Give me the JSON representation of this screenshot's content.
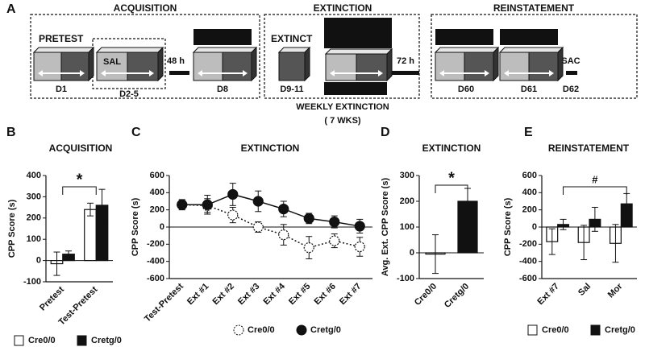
{
  "diagram": {
    "panel": "A",
    "phases": [
      "ACQUISITION",
      "EXTINCTION",
      "REINSTATEMENT"
    ],
    "labels": [
      "PRETEST",
      "SAL",
      "48 h",
      "EXTINCT",
      "72 h",
      "SAC"
    ],
    "days": [
      "D1",
      "D2-5",
      "D8",
      "D9-11",
      "D60",
      "D61",
      "D62"
    ],
    "note": [
      "WEEKLY EXTINCTION",
      "( 7 WKS)"
    ]
  },
  "chart_data": [
    {
      "panel": "B",
      "type": "bar",
      "title": "ACQUISITION",
      "ylabel": "CPP Score (s)",
      "categories": [
        "Pretest",
        "Test-Pretest"
      ],
      "series": [
        {
          "name": "Cre0/0",
          "color": "#ffffff",
          "values": [
            -15,
            240
          ],
          "errors": [
            55,
            30
          ]
        },
        {
          "name": "Cretg/0",
          "color": "#111111",
          "values": [
            30,
            260
          ],
          "errors": [
            15,
            75
          ]
        }
      ],
      "ylim": [
        -100,
        400
      ],
      "yticks": [
        -100,
        0,
        100,
        200,
        300,
        400
      ],
      "annotation": "*",
      "legend": "bottom"
    },
    {
      "panel": "C",
      "type": "line",
      "title": "EXTINCTION",
      "ylabel": "CPP Score (s)",
      "categories": [
        "Test-Pretest",
        "Ext #1",
        "Ext #2",
        "Ext #3",
        "Ext #4",
        "Ext #5",
        "Ext #6",
        "Ext #7"
      ],
      "series": [
        {
          "name": "Cre0/0",
          "color": "#ffffff",
          "linestyle": "dotted",
          "values": [
            260,
            250,
            140,
            0,
            -90,
            -240,
            -160,
            -230
          ],
          "errors": [
            50,
            80,
            90,
            60,
            120,
            130,
            80,
            110
          ]
        },
        {
          "name": "Cretg/0",
          "color": "#111111",
          "linestyle": "solid",
          "values": [
            260,
            260,
            380,
            300,
            210,
            100,
            60,
            10
          ],
          "errors": [
            60,
            110,
            130,
            120,
            90,
            60,
            70,
            80
          ]
        }
      ],
      "ylim": [
        -600,
        600
      ],
      "yticks": [
        -600,
        -400,
        -200,
        0,
        200,
        400,
        600
      ],
      "legend": "bottom"
    },
    {
      "panel": "D",
      "type": "bar",
      "title": "EXTINCTION",
      "ylabel": "Avg. Ext. CPP Score (s)",
      "categories": [
        "Cre0/0",
        "Cretg/0"
      ],
      "values": [
        -5,
        200
      ],
      "errors": [
        75,
        50
      ],
      "colors": [
        "#ffffff",
        "#111111"
      ],
      "ylim": [
        -100,
        300
      ],
      "yticks": [
        -100,
        0,
        100,
        200,
        300
      ],
      "annotation": "*"
    },
    {
      "panel": "E",
      "type": "bar",
      "title": "REINSTATEMENT",
      "ylabel": "CPP Score (s)",
      "categories": [
        "Ext #7",
        "Sal",
        "Mor"
      ],
      "series": [
        {
          "name": "Cre0/0",
          "color": "#ffffff",
          "values": [
            -170,
            -180,
            -190
          ],
          "errors": [
            150,
            200,
            220
          ]
        },
        {
          "name": "Cretg/0",
          "color": "#111111",
          "values": [
            30,
            90,
            270
          ],
          "errors": [
            60,
            140,
            120
          ]
        }
      ],
      "ylim": [
        -600,
        600
      ],
      "yticks": [
        -600,
        -400,
        -200,
        0,
        200,
        400,
        600
      ],
      "annotation": "#",
      "legend": "bottom"
    }
  ]
}
